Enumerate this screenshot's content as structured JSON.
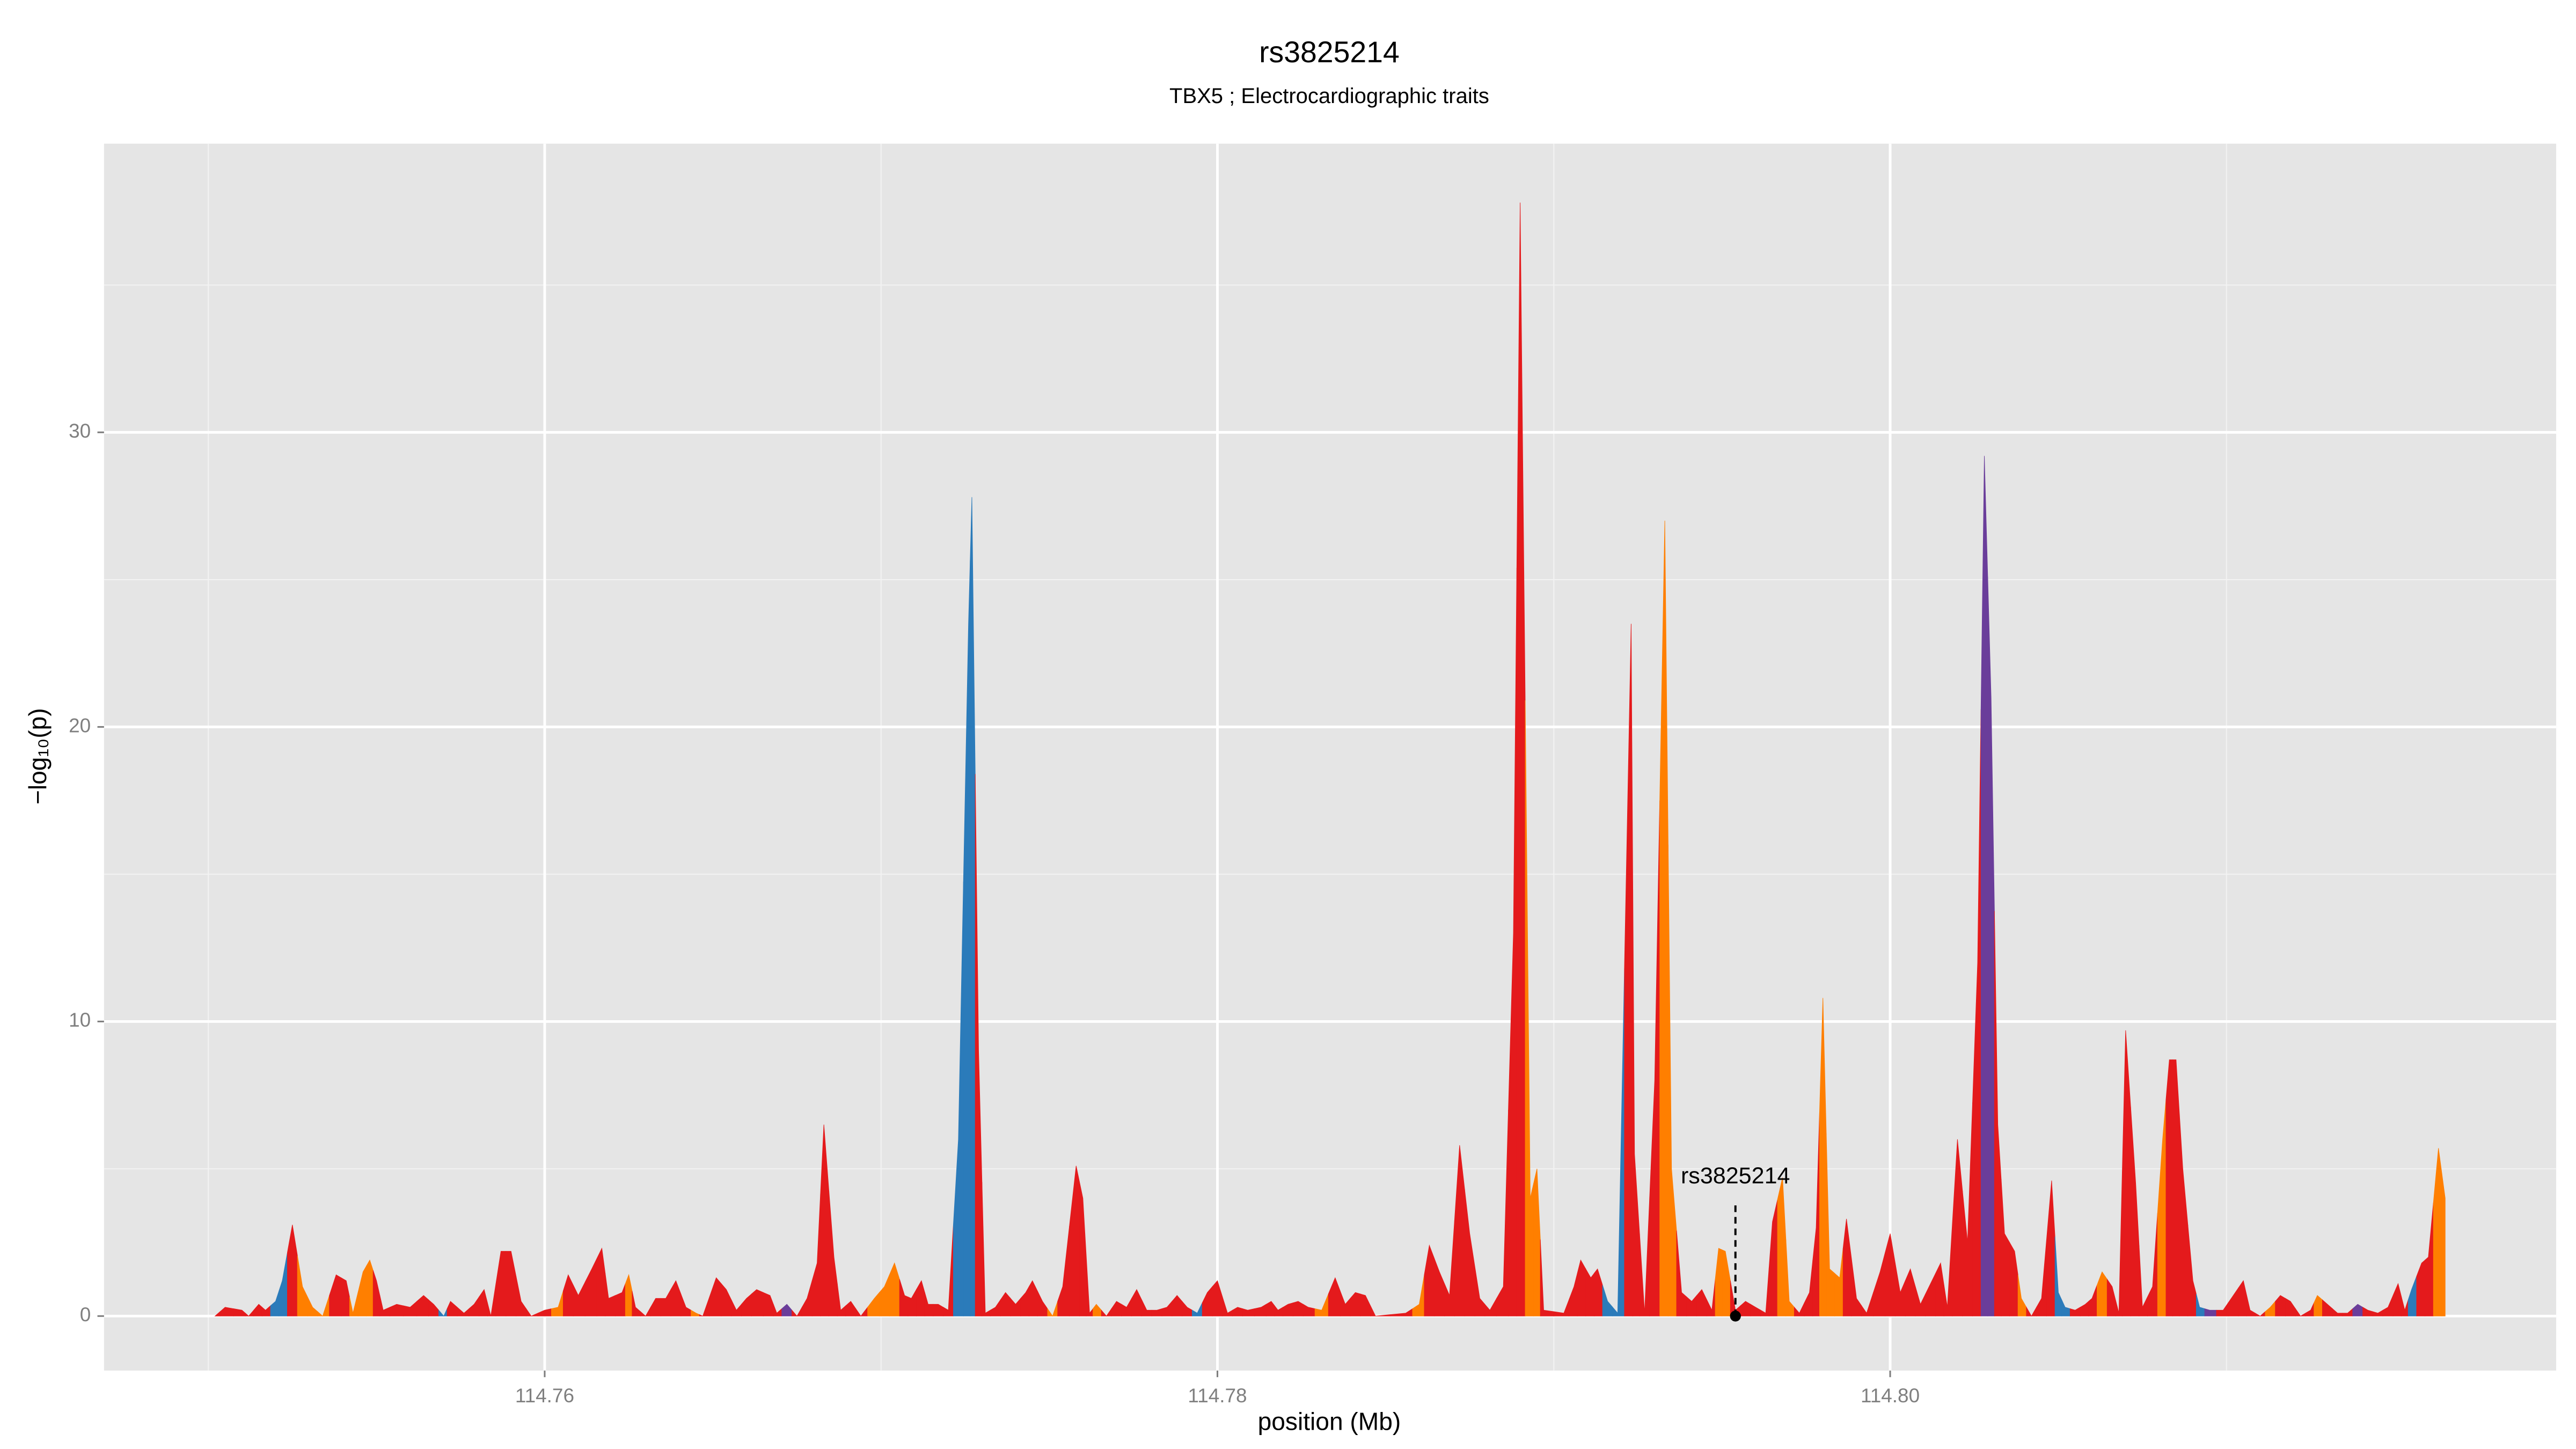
{
  "chart_data": {
    "type": "area",
    "title": "rs3825214",
    "subtitle": "TBX5 ; Electrocardiographic traits",
    "x_label": "position (Mb)",
    "y_label": "−log₁₀(p)",
    "xlim": [
      114.7469,
      114.8198
    ],
    "ylim": [
      -1.85,
      39.8
    ],
    "xticks": [
      114.76,
      114.78,
      {
        "value": 114.8,
        "label": "114.80"
      }
    ],
    "yticks": [
      0,
      10,
      20,
      30
    ],
    "grid": true,
    "annotation": {
      "text": "rs3825214",
      "x": 114.7954,
      "y": 0
    },
    "x": [
      114.7502,
      114.7505,
      114.751,
      114.7512,
      114.7515,
      114.7517,
      114.752,
      114.7522,
      114.7525,
      114.7528,
      114.7531,
      114.7534,
      114.7538,
      114.7541,
      114.7543,
      114.7546,
      114.7548,
      114.755,
      114.7552,
      114.7556,
      114.756,
      114.7564,
      114.7567,
      114.757,
      114.7572,
      114.7576,
      114.7579,
      114.7582,
      114.7584,
      114.7587,
      114.759,
      114.7593,
      114.7596,
      114.76,
      114.7604,
      114.7607,
      114.761,
      114.7614,
      114.7617,
      114.7619,
      114.7623,
      114.7625,
      114.7627,
      114.763,
      114.7633,
      114.7636,
      114.7639,
      114.7642,
      114.7645,
      114.7647,
      114.7651,
      114.7654,
      114.7657,
      114.766,
      114.7663,
      114.7667,
      114.7669,
      114.7672,
      114.7675,
      114.7678,
      114.7681,
      114.7683,
      114.7686,
      114.7688,
      114.7691,
      114.7694,
      114.7698,
      114.7701,
      114.7704,
      114.7707,
      114.7709,
      114.7712,
      114.7714,
      114.7717,
      114.772,
      114.7723,
      114.7726,
      114.7727,
      114.7729,
      114.7731,
      114.7734,
      114.7737,
      114.774,
      114.7743,
      114.7745,
      114.7748,
      114.7751,
      114.7754,
      114.7758,
      114.776,
      114.7762,
      114.7764,
      114.7767,
      114.777,
      114.7773,
      114.7776,
      114.7779,
      114.7782,
      114.7785,
      114.7788,
      114.7791,
      114.7794,
      114.7797,
      114.78,
      114.7803,
      114.7806,
      114.7809,
      114.7813,
      114.7816,
      114.7818,
      114.7821,
      114.7824,
      114.7827,
      114.7831,
      114.7835,
      114.7838,
      114.7841,
      114.7844,
      114.7847,
      114.7856,
      114.786,
      114.7863,
      114.7866,
      114.7869,
      114.7872,
      114.7875,
      114.7878,
      114.7881,
      114.7885,
      114.7888,
      114.789,
      114.7893,
      114.7895,
      114.7897,
      114.7903,
      114.7906,
      114.7908,
      114.7911,
      114.7913,
      114.7916,
      114.7919,
      114.7923,
      114.7924,
      114.7927,
      114.793,
      114.7933,
      114.7935,
      114.7938,
      114.7941,
      114.7944,
      114.7947,
      114.7949,
      114.7951,
      114.7954,
      114.7957,
      114.796,
      114.7963,
      114.7965,
      114.7968,
      114.797,
      114.7973,
      114.7976,
      114.7978,
      114.798,
      114.7982,
      114.7985,
      114.7987,
      114.799,
      114.7993,
      114.7997,
      114.8,
      114.8003,
      114.8006,
      114.8009,
      114.8012,
      114.8015,
      114.8017,
      114.802,
      114.8023,
      114.8026,
      114.8028,
      114.803,
      114.8032,
      114.8034,
      114.8037,
      114.8039,
      114.8042,
      114.8045,
      114.8048,
      114.805,
      114.8052,
      114.8055,
      114.8058,
      114.806,
      114.8063,
      114.8066,
      114.8068,
      114.807,
      114.8073,
      114.8075,
      114.8078,
      114.8081,
      114.8083,
      114.8085,
      114.8087,
      114.809,
      114.8092,
      114.8095,
      114.8099,
      114.8102,
      114.8105,
      114.8107,
      114.811,
      114.8113,
      114.8116,
      114.8119,
      114.8122,
      114.8125,
      114.8127,
      114.813,
      114.8133,
      114.8136,
      114.8139,
      114.8142,
      114.8145,
      114.8148,
      114.8151,
      114.8153,
      114.8155,
      114.8158,
      114.816,
      114.8163,
      114.8165
    ],
    "values": [
      0,
      0.3,
      0.2,
      0,
      0.4,
      0.2,
      0.5,
      1.2,
      3.1,
      1.0,
      0.3,
      0,
      1.4,
      1.2,
      0.1,
      1.5,
      1.9,
      1.2,
      0.2,
      0.4,
      0.3,
      0.7,
      0.4,
      0,
      0.5,
      0.1,
      0.4,
      0.9,
      0,
      2.2,
      2.2,
      0.5,
      0,
      0.2,
      0.3,
      1.4,
      0.7,
      1.6,
      2.3,
      0.6,
      0.8,
      1.4,
      0.3,
      0,
      0.6,
      0.6,
      1.2,
      0.3,
      0.1,
      0,
      1.3,
      0.9,
      0.2,
      0.6,
      0.9,
      0.7,
      0.1,
      0.4,
      0,
      0.6,
      1.8,
      6.5,
      2.0,
      0.2,
      0.5,
      0,
      0.6,
      1.0,
      1.8,
      0.7,
      0.6,
      1.2,
      0.4,
      0.4,
      0.2,
      6.0,
      23.5,
      27.8,
      9.0,
      0.1,
      0.3,
      0.8,
      0.4,
      0.8,
      1.2,
      0.5,
      0,
      1.0,
      5.1,
      4.0,
      0.1,
      0.4,
      0,
      0.5,
      0.3,
      0.9,
      0.2,
      0.2,
      0.3,
      0.7,
      0.3,
      0.1,
      0.8,
      1.2,
      0.1,
      0.3,
      0.2,
      0.3,
      0.5,
      0.2,
      0.4,
      0.5,
      0.3,
      0.2,
      1.3,
      0.4,
      0.8,
      0.7,
      0,
      0.1,
      0.4,
      2.4,
      1.5,
      0.7,
      5.8,
      2.8,
      0.6,
      0.2,
      1.0,
      13.0,
      37.8,
      4.0,
      5.0,
      0.2,
      0.1,
      1.0,
      1.9,
      1.3,
      1.6,
      0.5,
      0.1,
      23.5,
      5.5,
      0.1,
      8.0,
      27.0,
      5.0,
      0.8,
      0.5,
      0.9,
      0.2,
      2.3,
      2.2,
      0.2,
      0.5,
      0.3,
      0.1,
      3.2,
      4.7,
      0.5,
      0.1,
      0.8,
      3.0,
      10.8,
      1.6,
      1.3,
      3.3,
      0.6,
      0.1,
      1.5,
      2.8,
      0.8,
      1.6,
      0.4,
      1.1,
      1.8,
      0.3,
      6.0,
      2.5,
      12.0,
      29.2,
      21.0,
      6.5,
      2.8,
      2.2,
      0.6,
      0,
      0.6,
      4.6,
      0.8,
      0.3,
      0.2,
      0.4,
      0.6,
      1.5,
      1.0,
      0.1,
      9.7,
      4.5,
      0.3,
      1.0,
      6.0,
      8.7,
      8.7,
      5.0,
      1.2,
      0.3,
      0.2,
      0.2,
      0.7,
      1.2,
      0.2,
      0,
      0.3,
      0.7,
      0.5,
      0,
      0.2,
      0.7,
      0.4,
      0.1,
      0.1,
      0.4,
      0.2,
      0.1,
      0.3,
      1.1,
      0.2,
      0.9,
      1.8,
      2.0,
      5.7,
      4.0
    ],
    "colors": [
      "#e41a1c",
      "#e41a1c",
      "#e41a1c",
      "#e41a1c",
      "#e41a1c",
      "#e41a1c",
      "#2b7bba",
      "#2b7bba",
      "#e41a1c",
      "#ff7f00",
      "#ff7f00",
      "#ff7f00",
      "#e41a1c",
      "#e41a1c",
      "#ff7f00",
      "#ff7f00",
      "#ff7f00",
      "#e41a1c",
      "#e41a1c",
      "#e41a1c",
      "#e41a1c",
      "#e41a1c",
      "#e41a1c",
      "#2b7bba",
      "#e41a1c",
      "#e41a1c",
      "#e41a1c",
      "#e41a1c",
      "#e41a1c",
      "#e41a1c",
      "#e41a1c",
      "#e41a1c",
      "#e41a1c",
      "#e41a1c",
      "#ff7f00",
      "#e41a1c",
      "#e41a1c",
      "#e41a1c",
      "#e41a1c",
      "#e41a1c",
      "#e41a1c",
      "#ff7f00",
      "#e41a1c",
      "#e41a1c",
      "#e41a1c",
      "#e41a1c",
      "#e41a1c",
      "#e41a1c",
      "#ff7f00",
      "#e41a1c",
      "#e41a1c",
      "#e41a1c",
      "#e41a1c",
      "#e41a1c",
      "#e41a1c",
      "#e41a1c",
      "#e41a1c",
      "#6a3d9a",
      "#e41a1c",
      "#e41a1c",
      "#e41a1c",
      "#e41a1c",
      "#e41a1c",
      "#e41a1c",
      "#e41a1c",
      "#e41a1c",
      "#ff7f00",
      "#ff7f00",
      "#ff7f00",
      "#e41a1c",
      "#e41a1c",
      "#e41a1c",
      "#e41a1c",
      "#e41a1c",
      "#e41a1c",
      "#2b7bba",
      "#2b7bba",
      "#2b7bba",
      "#e41a1c",
      "#e41a1c",
      "#e41a1c",
      "#e41a1c",
      "#e41a1c",
      "#e41a1c",
      "#e41a1c",
      "#e41a1c",
      "#ff7f00",
      "#e41a1c",
      "#e41a1c",
      "#e41a1c",
      "#e41a1c",
      "#ff7f00",
      "#e41a1c",
      "#e41a1c",
      "#e41a1c",
      "#e41a1c",
      "#e41a1c",
      "#e41a1c",
      "#e41a1c",
      "#e41a1c",
      "#e41a1c",
      "#2b7bba",
      "#e41a1c",
      "#e41a1c",
      "#e41a1c",
      "#e41a1c",
      "#e41a1c",
      "#e41a1c",
      "#e41a1c",
      "#e41a1c",
      "#e41a1c",
      "#e41a1c",
      "#e41a1c",
      "#ff7f00",
      "#e41a1c",
      "#e41a1c",
      "#e41a1c",
      "#e41a1c",
      "#e41a1c",
      "#e41a1c",
      "#ff7f00",
      "#e41a1c",
      "#e41a1c",
      "#e41a1c",
      "#e41a1c",
      "#e41a1c",
      "#e41a1c",
      "#e41a1c",
      "#e41a1c",
      "#e41a1c",
      "#e41a1c",
      "#ff7f00",
      "#ff7f00",
      "#e41a1c",
      "#e41a1c",
      "#e41a1c",
      "#e41a1c",
      "#e41a1c",
      "#e41a1c",
      "#2b7bba",
      "#2b7bba",
      "#e41a1c",
      "#e41a1c",
      "#e41a1c",
      "#e41a1c",
      "#ff7f00",
      "#ff7f00",
      "#e41a1c",
      "#e41a1c",
      "#e41a1c",
      "#e41a1c",
      "#ff7f00",
      "#ff7f00",
      "#e41a1c",
      "#e41a1c",
      "#e41a1c",
      "#e41a1c",
      "#e41a1c",
      "#ff7f00",
      "#ff7f00",
      "#e41a1c",
      "#e41a1c",
      "#e41a1c",
      "#ff7f00",
      "#ff7f00",
      "#ff7f00",
      "#e41a1c",
      "#e41a1c",
      "#e41a1c",
      "#e41a1c",
      "#e41a1c",
      "#e41a1c",
      "#e41a1c",
      "#e41a1c",
      "#e41a1c",
      "#e41a1c",
      "#e41a1c",
      "#e41a1c",
      "#e41a1c",
      "#e41a1c",
      "#6a3d9a",
      "#6a3d9a",
      "#e41a1c",
      "#e41a1c",
      "#e41a1c",
      "#ff7f00",
      "#e41a1c",
      "#e41a1c",
      "#e41a1c",
      "#2b7bba",
      "#2b7bba",
      "#e41a1c",
      "#e41a1c",
      "#e41a1c",
      "#ff7f00",
      "#e41a1c",
      "#e41a1c",
      "#e41a1c",
      "#e41a1c",
      "#e41a1c",
      "#e41a1c",
      "#ff7f00",
      "#e41a1c",
      "#e41a1c",
      "#e41a1c",
      "#e41a1c",
      "#2b7bba",
      "#6a3d9a",
      "#e41a1c",
      "#e41a1c",
      "#e41a1c",
      "#e41a1c",
      "#e41a1c",
      "#ff7f00",
      "#e41a1c",
      "#e41a1c",
      "#e41a1c",
      "#e41a1c",
      "#ff7f00",
      "#e41a1c",
      "#e41a1c",
      "#e41a1c",
      "#6a3d9a",
      "#e41a1c",
      "#e41a1c",
      "#e41a1c",
      "#e41a1c",
      "#e41a1c",
      "#2b7bba",
      "#e41a1c",
      "#e41a1c",
      "#ff7f00",
      "#ff7f00"
    ]
  }
}
